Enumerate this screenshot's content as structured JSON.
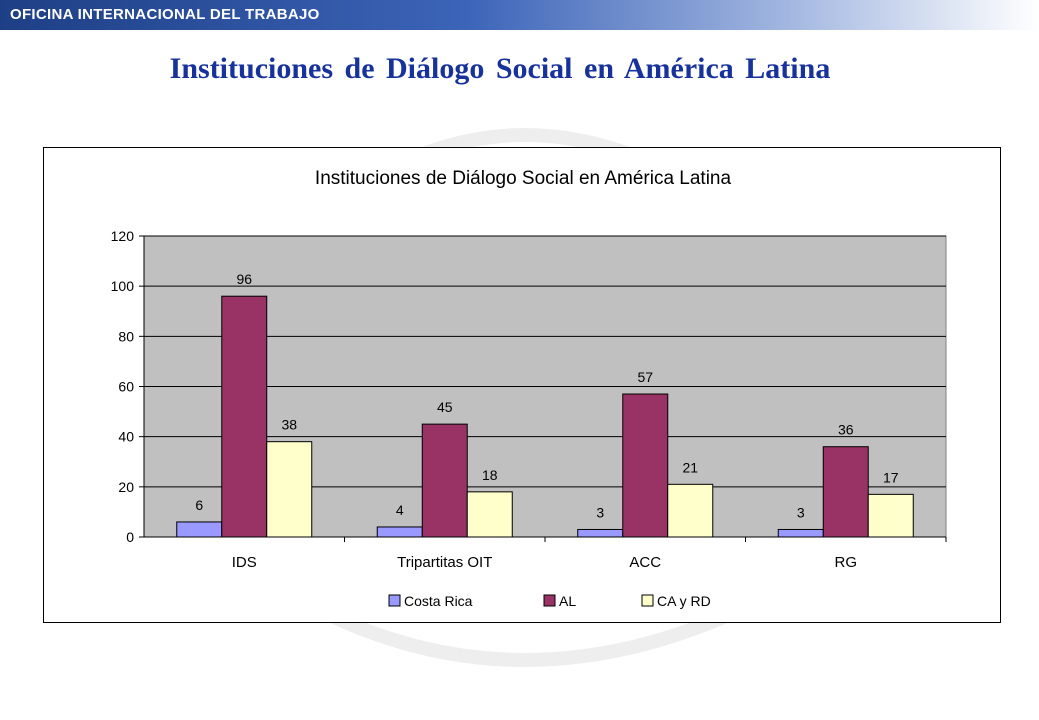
{
  "header": {
    "org_name": "OFICINA INTERNACIONAL DEL TRABAJO"
  },
  "slide": {
    "title": "Instituciones de Diálogo Social en América Latina"
  },
  "colors": {
    "header_bar": "#2a4f9f",
    "title": "#17329a",
    "plot_background": "#c0c0c0"
  },
  "chart_data": {
    "type": "bar",
    "title": "Instituciones de Diálogo Social en América Latina",
    "xlabel": "",
    "ylabel": "",
    "categories": [
      "IDS",
      "Tripartitas OIT",
      "ACC",
      "RG"
    ],
    "series": [
      {
        "name": "Costa Rica",
        "color": "#9999ff",
        "values": [
          6,
          4,
          3,
          3
        ]
      },
      {
        "name": "AL",
        "color": "#993366",
        "values": [
          96,
          45,
          57,
          36
        ]
      },
      {
        "name": "CA y RD",
        "color": "#ffffcc",
        "values": [
          38,
          18,
          21,
          17
        ]
      }
    ],
    "ylim": [
      0,
      120
    ],
    "yticks": [
      0,
      20,
      40,
      60,
      80,
      100,
      120
    ],
    "grid": true,
    "data_labels": true,
    "legend_position": "bottom"
  }
}
